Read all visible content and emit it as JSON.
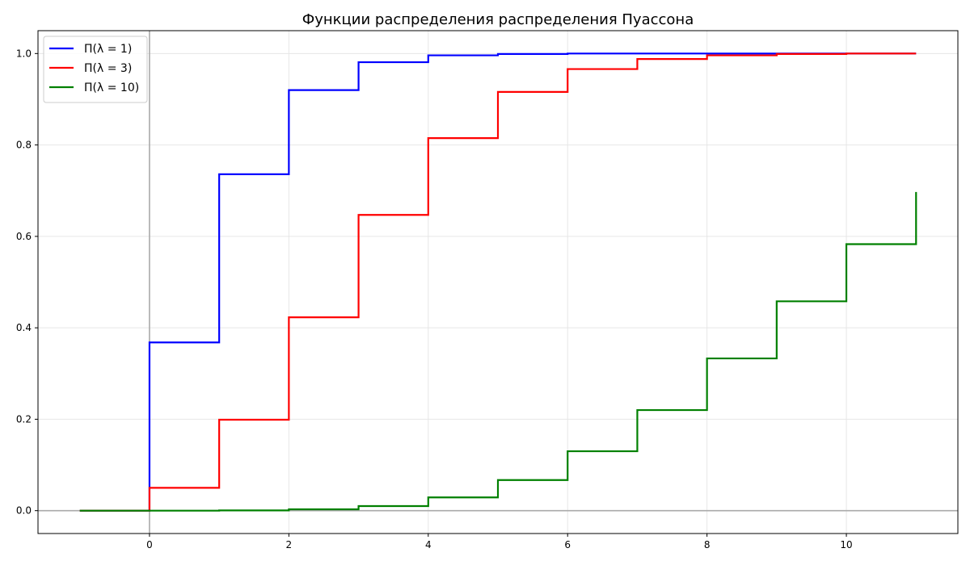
{
  "chart_data": {
    "type": "line",
    "step": "post",
    "title": "Функции распределения распределения Пуассона",
    "xlabel": "",
    "ylabel": "",
    "xlim": [
      -1.6,
      11.6
    ],
    "ylim": [
      -0.05,
      1.05
    ],
    "xticks": [
      0,
      2,
      4,
      6,
      8,
      10
    ],
    "yticks": [
      0.0,
      0.2,
      0.4,
      0.6,
      0.8,
      1.0
    ],
    "xtick_labels": [
      "0",
      "2",
      "4",
      "6",
      "8",
      "10"
    ],
    "ytick_labels": [
      "0.0",
      "0.2",
      "0.4",
      "0.6",
      "0.8",
      "1.0"
    ],
    "grid": true,
    "legend_position": "top-left",
    "reference_lines": {
      "x": 0,
      "y": 0,
      "color": "#aaaaaa"
    },
    "x_range": [
      -1,
      11
    ],
    "series": [
      {
        "name": "Π(λ = 1)",
        "color": "#0000ff",
        "x": [
          0,
          1,
          2,
          3,
          4,
          5,
          6,
          7,
          8,
          9,
          10
        ],
        "values": [
          0.368,
          0.736,
          0.92,
          0.981,
          0.996,
          0.999,
          1.0,
          1.0,
          1.0,
          1.0,
          1.0
        ]
      },
      {
        "name": "Π(λ = 3)",
        "color": "#ff0000",
        "x": [
          0,
          1,
          2,
          3,
          4,
          5,
          6,
          7,
          8,
          9,
          10
        ],
        "values": [
          0.05,
          0.199,
          0.423,
          0.647,
          0.815,
          0.916,
          0.966,
          0.988,
          0.996,
          0.999,
          1.0
        ]
      },
      {
        "name": "Π(λ = 10)",
        "color": "#008000",
        "x": [
          0,
          1,
          2,
          3,
          4,
          5,
          6,
          7,
          8,
          9,
          10,
          11
        ],
        "values": [
          0.0,
          0.0005,
          0.003,
          0.01,
          0.029,
          0.067,
          0.13,
          0.22,
          0.333,
          0.458,
          0.583,
          0.697
        ]
      }
    ]
  }
}
